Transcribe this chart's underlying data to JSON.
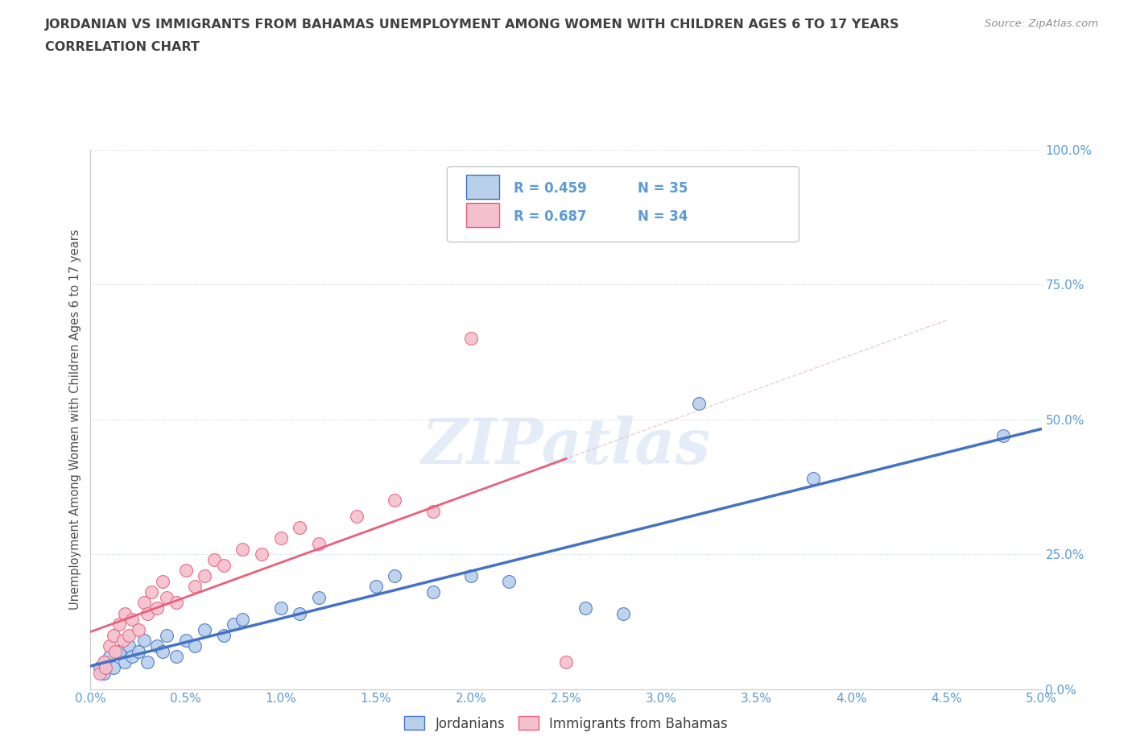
{
  "title_line1": "JORDANIAN VS IMMIGRANTS FROM BAHAMAS UNEMPLOYMENT AMONG WOMEN WITH CHILDREN AGES 6 TO 17 YEARS",
  "title_line2": "CORRELATION CHART",
  "source_text": "Source: ZipAtlas.com",
  "ylabel": "Unemployment Among Women with Children Ages 6 to 17 years",
  "xlim": [
    0.0,
    5.0
  ],
  "ylim": [
    0.0,
    100.0
  ],
  "xticks": [
    0.0,
    0.5,
    1.0,
    1.5,
    2.0,
    2.5,
    3.0,
    3.5,
    4.0,
    4.5,
    5.0
  ],
  "yticks": [
    0.0,
    25.0,
    50.0,
    75.0,
    100.0
  ],
  "series1_name": "Jordanians",
  "series1_color": "#b8d0ea",
  "series1_edge_color": "#4472c4",
  "series1_line_color": "#4472c4",
  "series1_R": 0.459,
  "series1_N": 35,
  "series2_name": "Immigrants from Bahamas",
  "series2_color": "#f4c0ce",
  "series2_edge_color": "#e8607a",
  "series2_line_color": "#e8607a",
  "series2_R": 0.687,
  "series2_N": 34,
  "series1_x": [
    0.05,
    0.07,
    0.08,
    0.1,
    0.12,
    0.15,
    0.18,
    0.2,
    0.22,
    0.25,
    0.28,
    0.3,
    0.35,
    0.38,
    0.4,
    0.45,
    0.5,
    0.55,
    0.6,
    0.7,
    0.75,
    0.8,
    1.0,
    1.1,
    1.2,
    1.5,
    1.6,
    1.8,
    2.0,
    2.2,
    2.6,
    2.8,
    3.2,
    3.8,
    4.8
  ],
  "series1_y": [
    4.0,
    3.0,
    5.0,
    6.0,
    4.0,
    7.0,
    5.0,
    8.0,
    6.0,
    7.0,
    9.0,
    5.0,
    8.0,
    7.0,
    10.0,
    6.0,
    9.0,
    8.0,
    11.0,
    10.0,
    12.0,
    13.0,
    15.0,
    14.0,
    17.0,
    19.0,
    21.0,
    18.0,
    21.0,
    20.0,
    15.0,
    14.0,
    53.0,
    39.0,
    47.0
  ],
  "series2_x": [
    0.05,
    0.07,
    0.08,
    0.1,
    0.12,
    0.13,
    0.15,
    0.17,
    0.18,
    0.2,
    0.22,
    0.25,
    0.28,
    0.3,
    0.32,
    0.35,
    0.38,
    0.4,
    0.45,
    0.5,
    0.55,
    0.6,
    0.65,
    0.7,
    0.8,
    0.9,
    1.0,
    1.1,
    1.2,
    1.4,
    1.6,
    1.8,
    2.0,
    2.5
  ],
  "series2_y": [
    3.0,
    5.0,
    4.0,
    8.0,
    10.0,
    7.0,
    12.0,
    9.0,
    14.0,
    10.0,
    13.0,
    11.0,
    16.0,
    14.0,
    18.0,
    15.0,
    20.0,
    17.0,
    16.0,
    22.0,
    19.0,
    21.0,
    24.0,
    23.0,
    26.0,
    25.0,
    28.0,
    30.0,
    27.0,
    32.0,
    35.0,
    33.0,
    65.0,
    5.0
  ],
  "watermark_text": "ZIPatlas",
  "background_color": "#ffffff",
  "grid_color": "#c8d4e8",
  "title_color": "#404040",
  "axis_label_color": "#505050",
  "tick_label_color": "#5b9bd5",
  "source_color": "#909090"
}
